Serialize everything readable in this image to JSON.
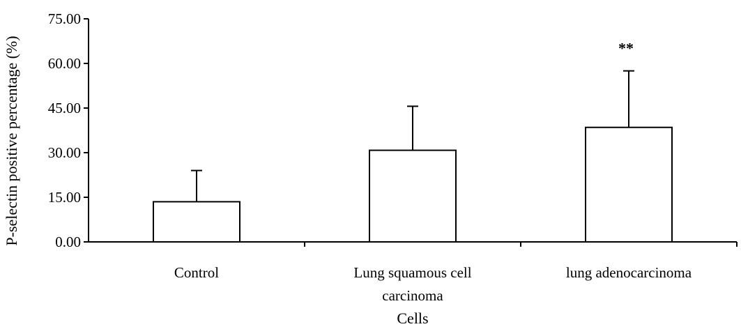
{
  "chart_data": {
    "type": "bar",
    "xlabel": "Cells",
    "ylabel": "P-selectin positive percentage (%)",
    "ylim": [
      0,
      75
    ],
    "yticks": [
      "0.00",
      "15.00",
      "30.00",
      "45.00",
      "60.00",
      "75.00"
    ],
    "categories": [
      {
        "lines": [
          "Control"
        ]
      },
      {
        "lines": [
          "Lung squamous cell",
          "carcinoma"
        ]
      },
      {
        "lines": [
          "lung adenocarcinoma"
        ]
      }
    ],
    "values": [
      13.5,
      30.8,
      38.5
    ],
    "errors": [
      10.5,
      14.8,
      19.0
    ],
    "annotations": [
      "",
      "",
      "**"
    ],
    "grid": false,
    "legend": "none",
    "colors": {
      "bar_fill": "#ffffff",
      "stroke": "#000000"
    }
  }
}
